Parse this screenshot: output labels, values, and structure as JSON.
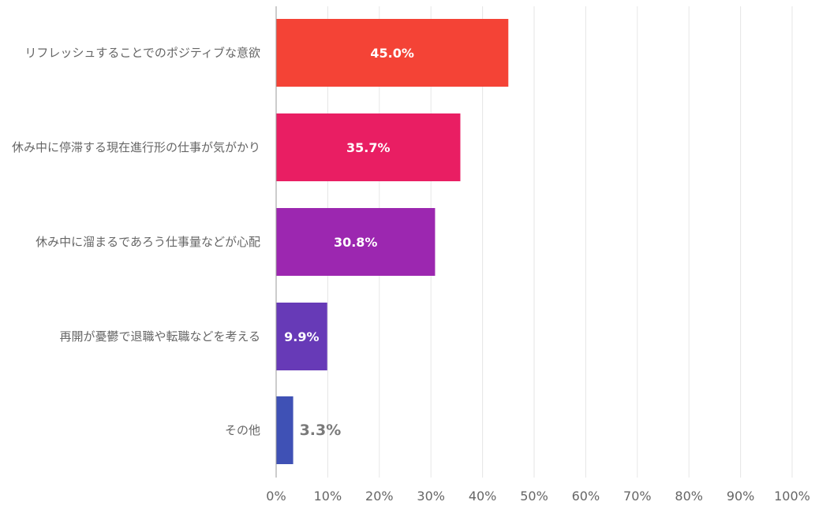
{
  "chart_data": {
    "type": "bar",
    "orientation": "horizontal",
    "categories": [
      "リフレッシュすることでのポジティブな意欲",
      "休み中に停滞する現在進行形の仕事が気がかり",
      "休み中に溜まるであろう仕事量などが心配",
      "再開が憂鬱で退職や転職などを考える",
      "その他"
    ],
    "values": [
      45.0,
      35.7,
      30.8,
      9.9,
      3.3
    ],
    "data_labels": [
      "45.0%",
      "35.7%",
      "30.8%",
      "9.9%",
      "3.3%"
    ],
    "colors": [
      "#f44336",
      "#e91e63",
      "#9c27b0",
      "#673ab7",
      "#3f51b5"
    ],
    "xlim": [
      0,
      100
    ],
    "x_ticks": [
      "0%",
      "10%",
      "20%",
      "30%",
      "40%",
      "50%",
      "60%",
      "70%",
      "80%",
      "90%",
      "100%"
    ],
    "grid": true,
    "title": "",
    "xlabel": "",
    "ylabel": ""
  }
}
